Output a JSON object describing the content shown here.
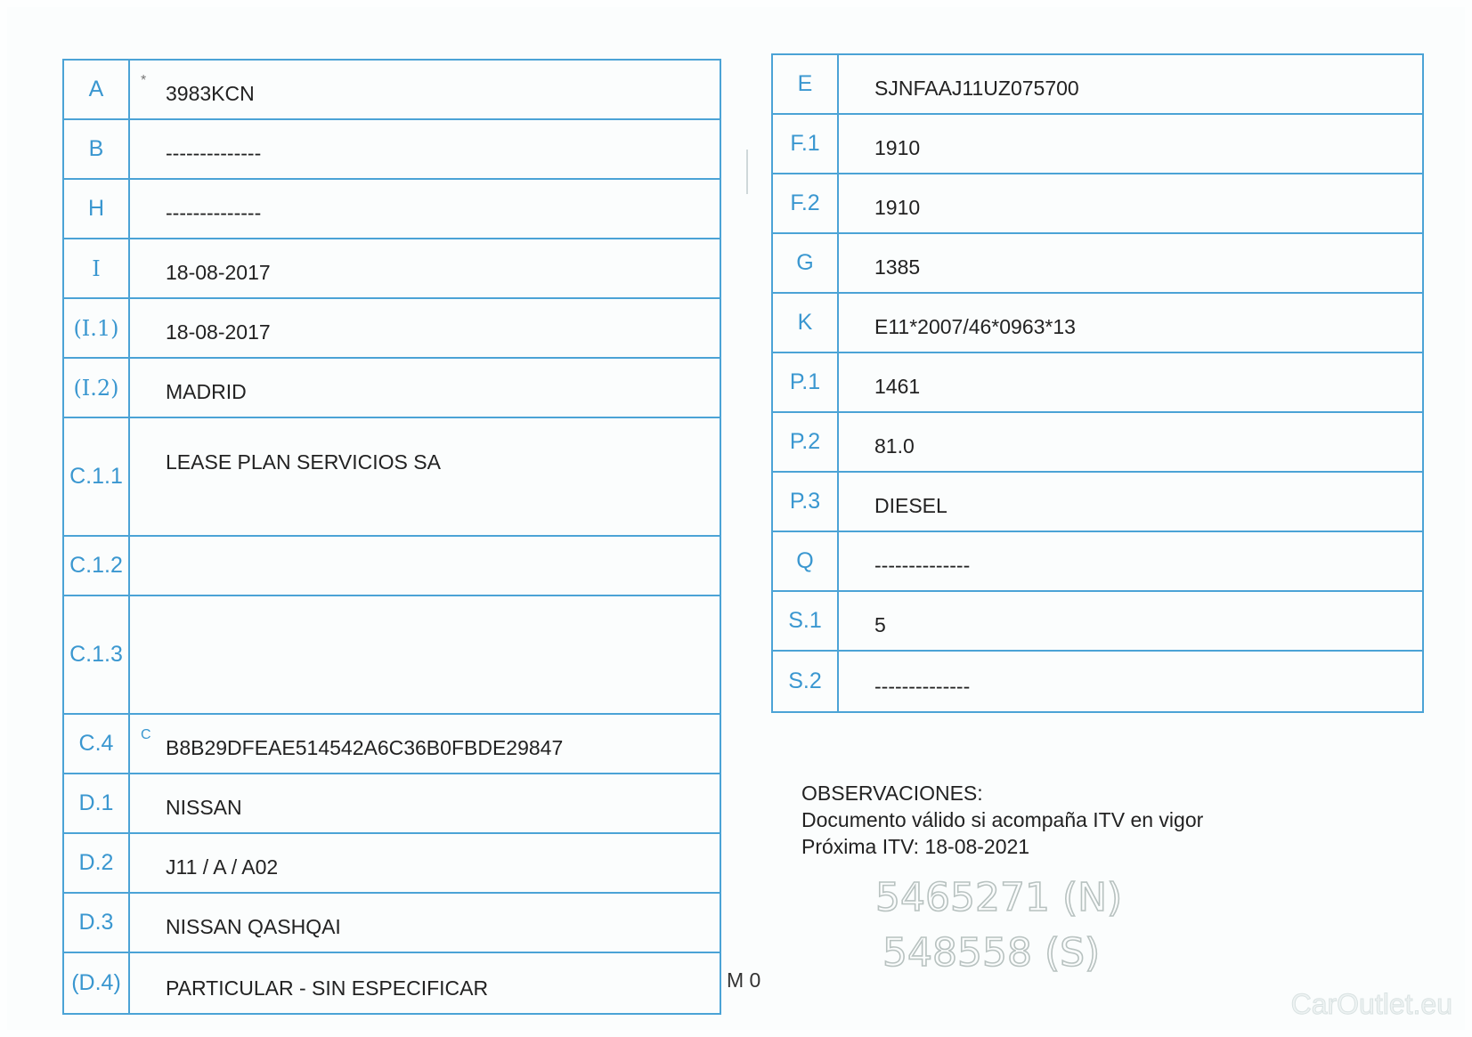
{
  "left_table": [
    {
      "label": "A",
      "value": "3983KCN",
      "mark": "*"
    },
    {
      "label": "B",
      "value": "--------------"
    },
    {
      "label": "H",
      "value": "--------------"
    },
    {
      "label": "I",
      "value": "18-08-2017"
    },
    {
      "label": "(I.1)",
      "value": "18-08-2017"
    },
    {
      "label": "(I.2)",
      "value": "MADRID"
    },
    {
      "label": "C.1.1",
      "value": "LEASE PLAN SERVICIOS SA"
    },
    {
      "label": "C.1.2",
      "value": ""
    },
    {
      "label": "C.1.3",
      "value": ""
    },
    {
      "label": "C.4",
      "value": "B8B29DFEAE514542A6C36B0FBDE29847",
      "mark": "C"
    },
    {
      "label": "D.1",
      "value": "NISSAN"
    },
    {
      "label": "D.2",
      "value": "J11 / A / A02"
    },
    {
      "label": "D.3",
      "value": "NISSAN QASHQAI"
    },
    {
      "label": "(D.4)",
      "value": "PARTICULAR - SIN ESPECIFICAR"
    }
  ],
  "right_table": [
    {
      "label": "E",
      "value": "SJNFAAJ11UZ075700"
    },
    {
      "label": "F.1",
      "value": "1910"
    },
    {
      "label": "F.2",
      "value": "1910"
    },
    {
      "label": "G",
      "value": "1385"
    },
    {
      "label": "K",
      "value": "E11*2007/46*0963*13"
    },
    {
      "label": "P.1",
      "value": "1461"
    },
    {
      "label": "P.2",
      "value": "81.0"
    },
    {
      "label": "P.3",
      "value": "DIESEL"
    },
    {
      "label": "Q",
      "value": "--------------"
    },
    {
      "label": "S.1",
      "value": "5"
    },
    {
      "label": "S.2",
      "value": "--------------"
    }
  ],
  "observations": {
    "heading": "OBSERVACIONES:",
    "line1": "Documento válido si acompaña ITV en vigor",
    "line2": "Próxima ITV: 18-08-2021"
  },
  "m0": "M 0",
  "handwritten": [
    "5465271 (N)",
    "548558 (S)"
  ],
  "watermark": "CarOutlet.eu"
}
